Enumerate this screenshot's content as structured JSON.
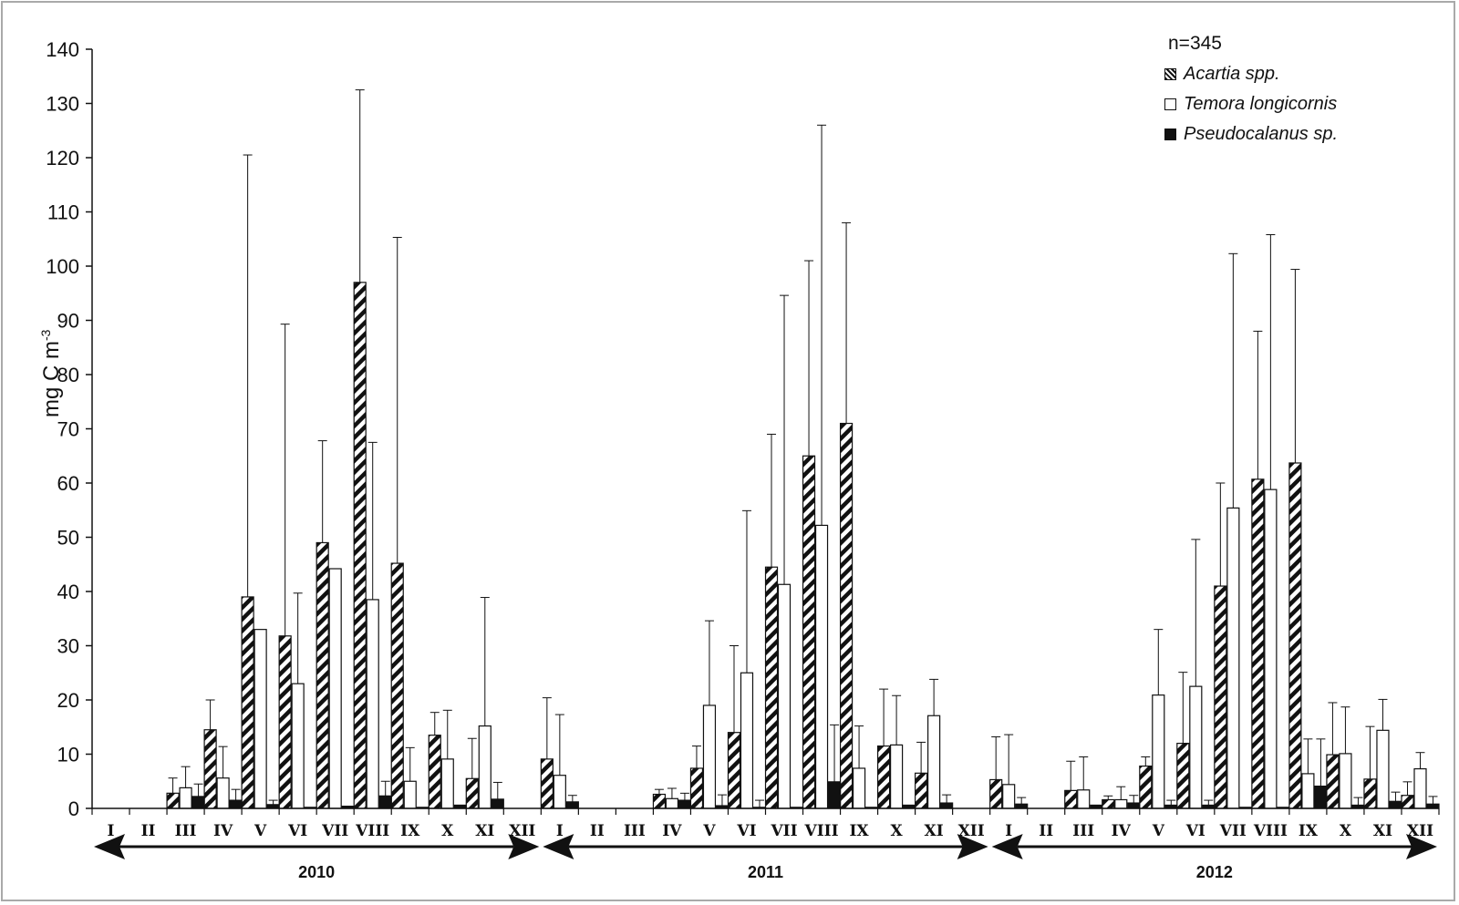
{
  "chart_data": {
    "type": "bar",
    "ylabel": "mg C m",
    "ylabel_sup": "-3",
    "ylim": [
      0,
      140
    ],
    "yticks": [
      0,
      10,
      20,
      30,
      40,
      50,
      60,
      70,
      80,
      90,
      100,
      110,
      120,
      130,
      140
    ],
    "annotation": "n=345",
    "legend_position": "top-right",
    "months": [
      "I",
      "II",
      "III",
      "IV",
      "V",
      "VI",
      "VII",
      "VIII",
      "IX",
      "X",
      "XI",
      "XII"
    ],
    "years": [
      "2010",
      "2011",
      "2012"
    ],
    "series": [
      {
        "name": "Acartia spp.",
        "pattern": "hatched",
        "values": [
          0,
          0,
          2.8,
          14.5,
          39,
          31.8,
          49,
          97,
          45.2,
          13.5,
          5.5,
          0,
          9.1,
          0,
          0,
          2.6,
          7.4,
          14,
          44.5,
          65,
          71,
          11.5,
          6.5,
          0,
          5.3,
          0,
          3.3,
          1.6,
          7.8,
          12,
          41,
          60.7,
          63.7,
          9.9,
          5.4,
          2.4
        ],
        "errors": [
          0,
          0,
          5.6,
          20,
          120.5,
          89.3,
          67.8,
          132.5,
          105.3,
          17.7,
          12.9,
          0,
          20.4,
          0,
          0,
          3.5,
          11.5,
          30,
          69,
          101,
          108,
          22,
          12.2,
          0,
          13.2,
          0,
          8.7,
          2.3,
          9.5,
          25.1,
          60,
          88,
          99.4,
          19.5,
          15.1,
          4.9
        ]
      },
      {
        "name": "Temora longicornis",
        "pattern": "white",
        "values": [
          0,
          0,
          3.8,
          5.6,
          33,
          23,
          44.2,
          38.5,
          5,
          9.1,
          15.2,
          0,
          6.1,
          0,
          0,
          1.8,
          19,
          25,
          41.3,
          52.2,
          7.4,
          11.7,
          17.1,
          0,
          4.4,
          0,
          3.4,
          1.6,
          20.9,
          22.5,
          55.4,
          58.8,
          6.4,
          10.1,
          14.4,
          7.3
        ],
        "errors": [
          0,
          0,
          7.7,
          11.4,
          0,
          39.7,
          0,
          67.5,
          11.2,
          18.1,
          38.9,
          0,
          17.3,
          0,
          0,
          3.7,
          34.6,
          54.9,
          94.6,
          126,
          15.2,
          20.8,
          23.8,
          0,
          13.6,
          0,
          9.5,
          4,
          33,
          49.6,
          102.3,
          105.8,
          12.8,
          18.7,
          20.1,
          10.3
        ]
      },
      {
        "name": "Pseudocalanus sp.",
        "pattern": "black",
        "values": [
          0,
          0,
          2.2,
          1.5,
          0.7,
          0.2,
          0.4,
          2.3,
          0.2,
          0.6,
          1.7,
          0,
          1.2,
          0,
          0,
          1.5,
          0.5,
          0.2,
          0.2,
          4.9,
          0.2,
          0.6,
          1,
          0,
          0.8,
          0,
          0.6,
          1,
          0.6,
          0.6,
          0.2,
          0.2,
          4.1,
          0.6,
          1.3,
          0.8
        ],
        "errors": [
          0,
          0,
          4.5,
          3.5,
          1.5,
          0,
          0,
          5,
          0,
          0,
          4.8,
          0,
          2.4,
          0,
          0,
          2.8,
          2.5,
          1.5,
          0,
          15.4,
          0,
          0,
          2.5,
          0,
          2,
          0,
          0,
          2.4,
          1.5,
          1.5,
          0,
          0,
          12.8,
          2,
          3,
          2.2
        ]
      }
    ]
  }
}
